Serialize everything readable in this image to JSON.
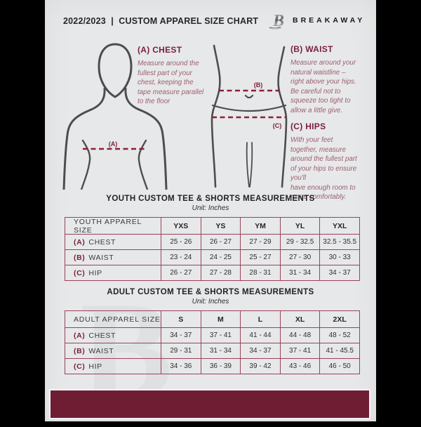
{
  "header": {
    "title": "2022/2023  |  CUSTOM APPAREL SIZE CHART",
    "brand": "BREAKAWAY"
  },
  "guide": {
    "chest": {
      "marker": "(A)",
      "heading": "(A) CHEST",
      "description": "Measure around the\nfullest part of your\nchest, keeping the\ntape measure parallel\nto the floor"
    },
    "waist": {
      "marker": "(B)",
      "heading": "(B) WAIST",
      "description": "Measure around your\nnatural waistline –\nright above your hips.\nBe careful not to\nsqueeze too tight to\nallow a little give."
    },
    "hips": {
      "marker": "(C)",
      "heading": "(C) HIPS",
      "description": "With your feet\ntogether, measure\naround the fullest part\nof your hips to ensure\nyou'll\nhave enough room to\nmove comfortably."
    }
  },
  "youth_table": {
    "title": "YOUTH CUSTOM TEE & SHORTS MEASUREMENTS",
    "unit": "Unit: Inches",
    "header": [
      "YOUTH APPAREL SIZE",
      "YXS",
      "YS",
      "YM",
      "YL",
      "YXL"
    ],
    "rows": [
      {
        "letter": "(A)",
        "label": "CHEST",
        "values": [
          "25 - 26",
          "26 - 27",
          "27 - 29",
          "29 - 32.5",
          "32.5 - 35.5"
        ]
      },
      {
        "letter": "(B)",
        "label": "WAIST",
        "values": [
          "23 - 24",
          "24 - 25",
          "25 - 27",
          "27 - 30",
          "30 - 33"
        ]
      },
      {
        "letter": "(C)",
        "label": "HIP",
        "values": [
          "26 - 27",
          "27 - 28",
          "28 - 31",
          "31 - 34",
          "34 - 37"
        ]
      }
    ]
  },
  "adult_table": {
    "title": "ADULT CUSTOM TEE & SHORTS MEASUREMENTS",
    "unit": "Unit: Inches",
    "header": [
      "ADULT APPAREL SIZE",
      "S",
      "M",
      "L",
      "XL",
      "2XL"
    ],
    "rows": [
      {
        "letter": "(A)",
        "label": "CHEST",
        "values": [
          "34 - 37",
          "37 - 41",
          "41 - 44",
          "44 - 48",
          "48 - 52"
        ]
      },
      {
        "letter": "(B)",
        "label": "WAIST",
        "values": [
          "29 - 31",
          "31 - 34",
          "34 - 37",
          "37 - 41",
          "41 - 45.5"
        ]
      },
      {
        "letter": "(C)",
        "label": "HIP",
        "values": [
          "34 - 36",
          "36 - 39",
          "39 - 42",
          "43 - 46",
          "46 - 50"
        ]
      }
    ]
  },
  "watermark": "B",
  "colors": {
    "accent": "#7a1f3d",
    "dashed_line": "#8d2038",
    "table_line": "#9a4258",
    "footer_bar": "#6f1d33",
    "page_background": "#e7e8e9",
    "figure_stroke": "#4d4d4f"
  }
}
